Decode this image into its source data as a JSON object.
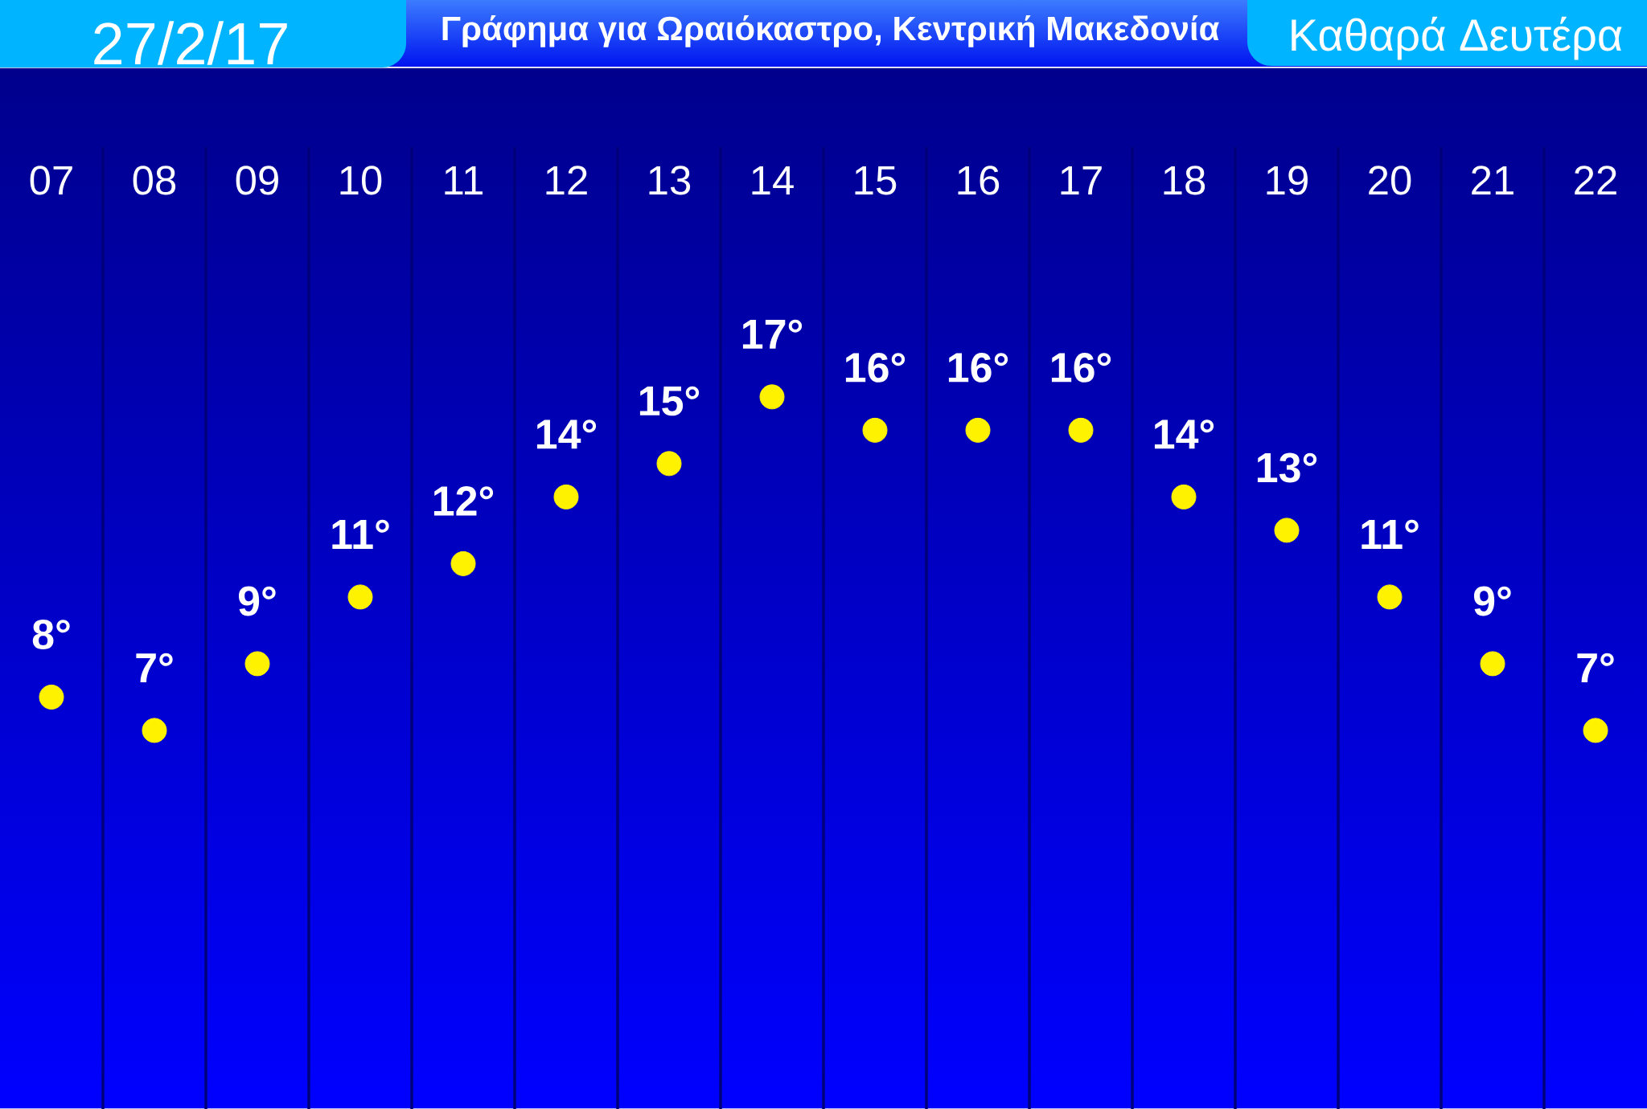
{
  "chart_data": {
    "type": "scatter",
    "title": "Γράφημα για Ωραιόκαστρο, Κεντρική Μακεδονία",
    "annotations": [
      "27/2/17",
      "Καθαρά Δευτέρα"
    ],
    "categories": [
      "07",
      "08",
      "09",
      "10",
      "11",
      "12",
      "13",
      "14",
      "15",
      "16",
      "17",
      "18",
      "19",
      "20",
      "21",
      "22"
    ],
    "values": [
      8,
      7,
      9,
      11,
      12,
      14,
      15,
      17,
      16,
      16,
      16,
      14,
      13,
      11,
      9,
      7
    ],
    "value_labels": [
      "8°",
      "7°",
      "9°",
      "11°",
      "12°",
      "14°",
      "15°",
      "17°",
      "16°",
      "16°",
      "16°",
      "14°",
      "13°",
      "11°",
      "9°",
      "7°"
    ],
    "color": "#fff200",
    "marker": "circle",
    "grid": "x",
    "tick_labels": "x"
  }
}
